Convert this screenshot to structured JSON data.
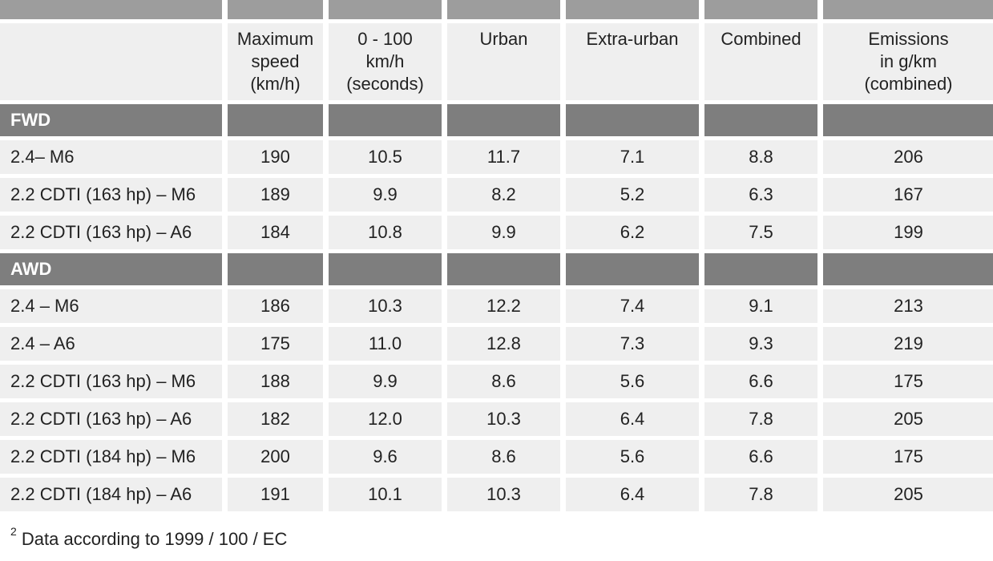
{
  "header": {
    "columns": [
      "",
      "Maximum\nspeed\n(km/h)",
      "0 - 100\nkm/h\n(seconds)",
      "Urban",
      "Extra-urban",
      "Combined",
      "Emissions\nin g/km\n(combined)"
    ]
  },
  "sections": [
    {
      "label": "FWD",
      "rows": [
        [
          "2.4– M6",
          "190",
          "10.5",
          "11.7",
          "7.1",
          "8.8",
          "206"
        ],
        [
          "2.2 CDTI (163 hp) – M6",
          "189",
          "9.9",
          "8.2",
          "5.2",
          "6.3",
          "167"
        ],
        [
          "2.2 CDTI (163 hp) – A6",
          "184",
          "10.8",
          "9.9",
          "6.2",
          "7.5",
          "199"
        ]
      ]
    },
    {
      "label": "AWD",
      "rows": [
        [
          "2.4 – M6",
          "186",
          "10.3",
          "12.2",
          "7.4",
          "9.1",
          "213"
        ],
        [
          "2.4 – A6",
          "175",
          "11.0",
          "12.8",
          "7.3",
          "9.3",
          "219"
        ],
        [
          "2.2 CDTI (163 hp) – M6",
          "188",
          "9.9",
          "8.6",
          "5.6",
          "6.6",
          "175"
        ],
        [
          "2.2 CDTI (163 hp) – A6",
          "182",
          "12.0",
          "10.3",
          "6.4",
          "7.8",
          "205"
        ],
        [
          "2.2 CDTI (184 hp) – M6",
          "200",
          "9.6",
          "8.6",
          "5.6",
          "6.6",
          "175"
        ],
        [
          "2.2 CDTI (184 hp) – A6",
          "191",
          "10.1",
          "10.3",
          "6.4",
          "7.8",
          "205"
        ]
      ]
    }
  ],
  "footnote": {
    "marker": "2",
    "text": "Data according to 1999 / 100 / EC"
  },
  "colors": {
    "band": "#9d9d9d",
    "section": "#7e7e7e",
    "cell": "#efefef"
  }
}
